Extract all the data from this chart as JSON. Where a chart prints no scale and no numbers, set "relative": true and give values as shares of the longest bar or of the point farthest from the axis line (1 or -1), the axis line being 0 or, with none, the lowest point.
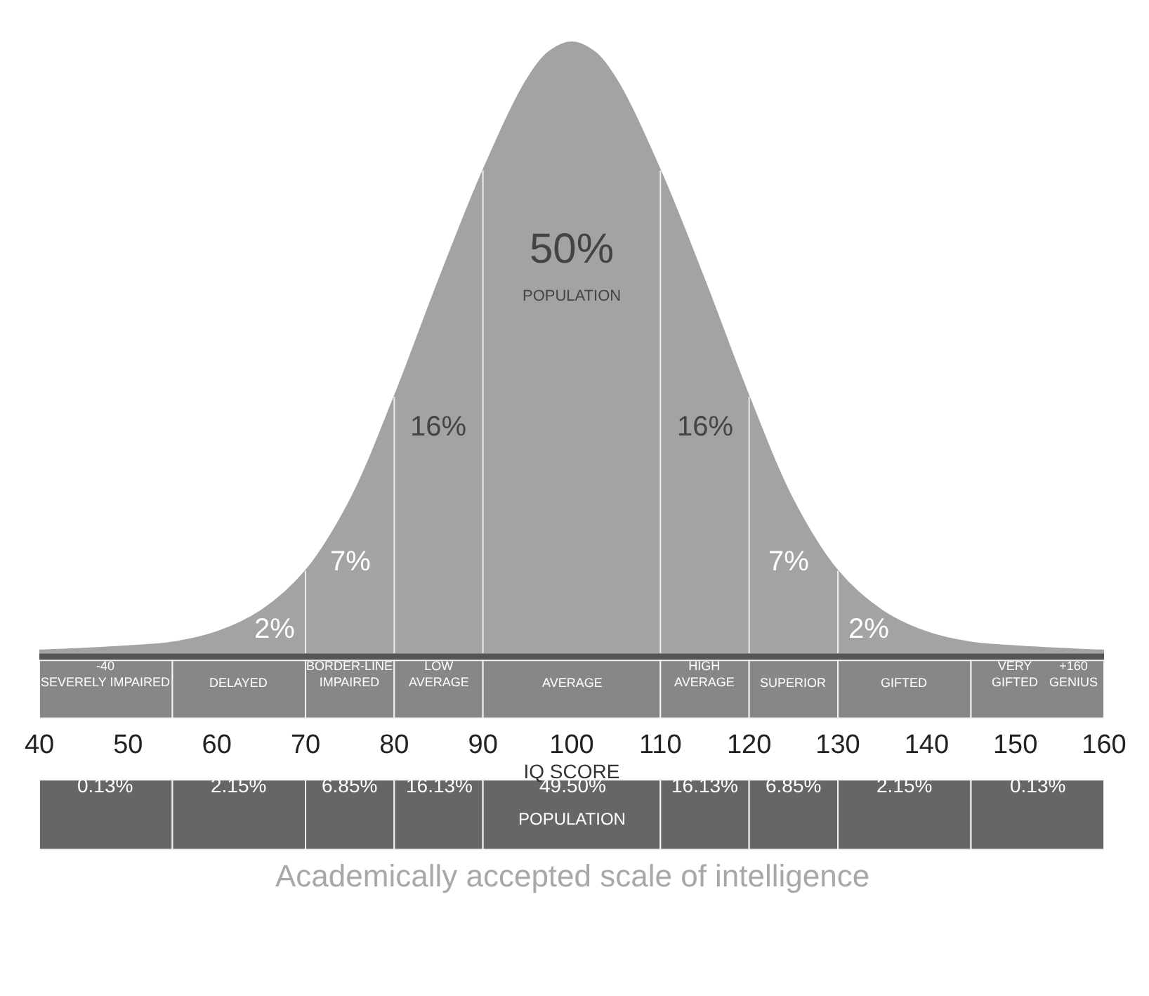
{
  "chart_data": [
    {
      "type": "area",
      "relative": true,
      "x": [
        40,
        45,
        50,
        55,
        60,
        65,
        70,
        75,
        80,
        85,
        90,
        95,
        97.5,
        100,
        102.5,
        105,
        110,
        115,
        120,
        125,
        130,
        135,
        140,
        145,
        150,
        155,
        160
      ],
      "series": [
        {
          "color": "#a3a3a3",
          "values": [
            0.005,
            0.008,
            0.012,
            0.018,
            0.035,
            0.07,
            0.135,
            0.25,
            0.42,
            0.61,
            0.79,
            0.94,
            0.985,
            1,
            0.985,
            0.94,
            0.79,
            0.61,
            0.42,
            0.25,
            0.135,
            0.07,
            0.035,
            0.018,
            0.012,
            0.008,
            0.005
          ]
        }
      ],
      "xlim": [
        40,
        160
      ],
      "xticks": [
        40,
        50,
        60,
        70,
        80,
        90,
        100,
        110,
        120,
        130,
        140,
        150,
        160
      ],
      "xlabel": "IQ SCORE",
      "ref_lines": [
        {
          "axis": "x",
          "value": 70,
          "color": "#ececec"
        },
        {
          "axis": "x",
          "value": 80,
          "color": "#ececec"
        },
        {
          "axis": "x",
          "value": 90,
          "color": "#ececec"
        },
        {
          "axis": "x",
          "value": 110,
          "color": "#ececec"
        },
        {
          "axis": "x",
          "value": 120,
          "color": "#ececec"
        },
        {
          "axis": "x",
          "value": 130,
          "color": "#ececec"
        }
      ],
      "annotations": [
        "2%",
        "7%",
        "16%",
        "50%",
        "POPULATION",
        "16%",
        "7%",
        "2%"
      ]
    },
    {
      "type": "other",
      "categories": [
        "-40\nSEVERELY IMPAIRED",
        "DELAYED",
        "BORDER-LINE\nIMPAIRED",
        "LOW\nAVERAGE",
        "AVERAGE",
        "HIGH\nAVERAGE",
        "SUPERIOR",
        "GIFTED",
        "VERY\nGIFTED"
      ],
      "value_labels": [
        "0.13%",
        "2.15%",
        "6.85%",
        "16.13%",
        "49.50%",
        "16.13%",
        "6.85%",
        "2.15%",
        "0.13%"
      ],
      "annotations": [
        "+160\nGENIUS",
        "POPULATION",
        "Academically accepted scale of intelligence"
      ]
    }
  ]
}
